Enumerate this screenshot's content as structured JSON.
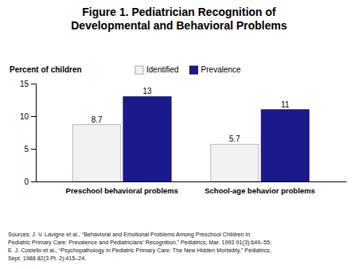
{
  "chart_data": {
    "type": "bar",
    "title": "Figure 1. Pediatrician Recognition of\nDevelopmental and Behavioral Problems",
    "ylabel": "Percent of children",
    "categories": [
      "Preschool behavioral problems",
      "School-age behavior problems"
    ],
    "series": [
      {
        "name": "Identified",
        "color": "#f2f2f2",
        "values": [
          8.7,
          5.7
        ]
      },
      {
        "name": "Prevalence",
        "color": "#1a1a8c",
        "values": [
          13,
          11
        ]
      }
    ],
    "ylim": [
      0,
      15
    ],
    "yticks": [
      0,
      5,
      10,
      15
    ],
    "data_labels": true,
    "legend": "top",
    "source": "Sources: J. V. Lavigne et al., “Behavioral and Emotional Problems Among Preschool Children in\nPediatric Primary Care: Prevalence and Pediatricians’ Recognition,” Pediatrics, Mar. 1993 91(3):649–55;\nE. J. Costello et al., “Psychopathology in Pediatric Primary Care: The New Hidden Morbidity,” Pediatrics,\nSept. 1988 82(3 Pt. 2):415–24."
  }
}
